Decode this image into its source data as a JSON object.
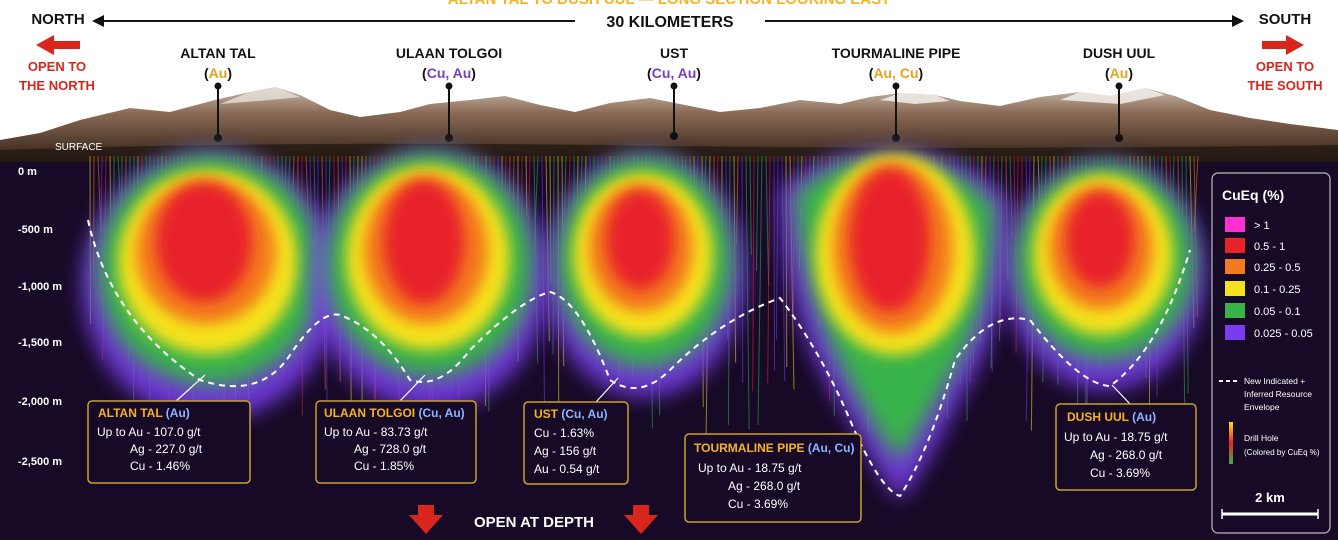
{
  "header": {
    "partial_title": "ALTAN TAL TO DUSH UUL — LONG SECTION LOOKING EAST",
    "distance_label": "30 KILOMETERS",
    "north_label": "NORTH",
    "south_label": "SOUTH",
    "open_north_line1": "OPEN TO",
    "open_north_line2": "THE NORTH",
    "open_south_line1": "OPEN TO",
    "open_south_line2": "THE SOUTH"
  },
  "surface_label": "SURFACE",
  "depth_axis": [
    "0 m",
    "-500 m",
    "-1,000 m",
    "-1,500 m",
    "-2,000 m",
    "-2,500 m"
  ],
  "deposits": [
    {
      "name": "ALTAN TAL",
      "metals": "(Au)",
      "metals_short": "Au",
      "assays": [
        "Up to Au - 107.0 g/t",
        "Ag - 227.0 g/t",
        "Cu - 1.46%"
      ]
    },
    {
      "name": "ULAAN TOLGOI",
      "metals": "(Cu, Au)",
      "metals_short": "Cu, Au",
      "assays": [
        "Up to Au - 83.73 g/t",
        "Ag - 728.0 g/t",
        "Cu - 1.85%"
      ]
    },
    {
      "name": "UST",
      "metals": "(Cu, Au)",
      "metals_short": "Cu, Au",
      "assays": [
        "Cu - 1.63%",
        "Ag - 156 g/t",
        "Au - 0.54 g/t"
      ]
    },
    {
      "name": "TOURMALINE PIPE",
      "metals": "(Au, Cu)",
      "metals_short": "Au, Cu",
      "assays": [
        "Up to Au - 18.75 g/t",
        "Ag - 268.0 g/t",
        "Cu - 3.69%"
      ]
    },
    {
      "name": "DUSH UUL",
      "metals": "(Au)",
      "metals_short": "Au",
      "assays": [
        "Up to Au - 18.75 g/t",
        "Ag - 268.0 g/t",
        "Cu - 3.69%"
      ]
    }
  ],
  "legend": {
    "title": "CuEq (%)",
    "items": [
      {
        "label": "> 1",
        "color": "#ff2fd2"
      },
      {
        "label": "0.5 - 1",
        "color": "#e8242a"
      },
      {
        "label": "0.25 - 0.5",
        "color": "#f47a1f"
      },
      {
        "label": "0.1 - 0.25",
        "color": "#f5e21f"
      },
      {
        "label": "0.05 - 0.1",
        "color": "#37b34a"
      },
      {
        "label": "0.025 - 0.05",
        "color": "#7b3cf0"
      }
    ],
    "envelope_line1": "New Indicated +",
    "envelope_line2": "Inferred Resource",
    "envelope_line3": "Envelope",
    "drill_line1": "Drill Hole",
    "drill_line2": "(Colored by CuEq %)",
    "scale_label": "2 km"
  },
  "bottom_label": "OPEN AT DEPTH",
  "colors": {
    "background": "#170a26",
    "accent_gold": "#f5b324",
    "accent_red": "#d9261c",
    "box_border": "#c9a22c"
  }
}
